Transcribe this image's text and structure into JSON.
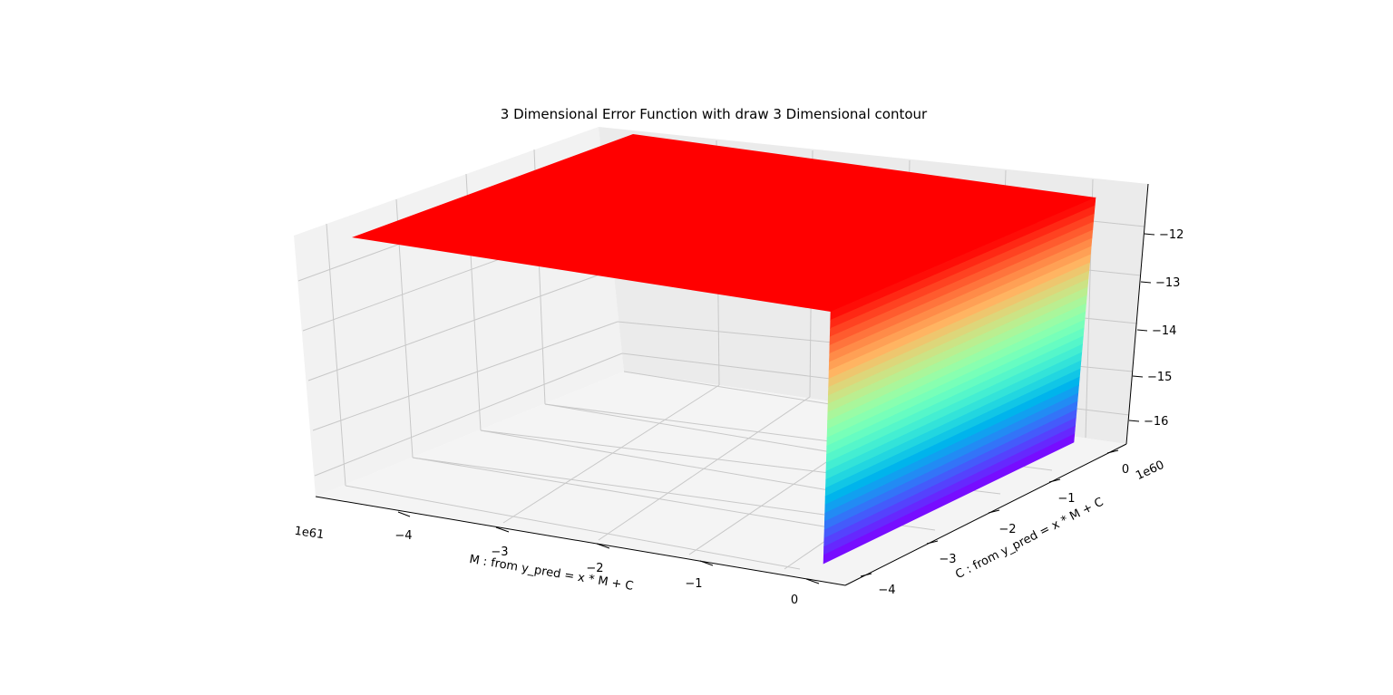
{
  "chart_data": {
    "type": "surface3d",
    "title": "3 Dimensional Error Function with draw 3 Dimensional contour",
    "xlabel": "M : from y_pred = x * M + C",
    "ylabel": "C : from y_pred = x * M + C",
    "zlabel": "",
    "x_ticks": [
      "−4",
      "−3",
      "−2",
      "−1",
      "0"
    ],
    "x_offset": "1e61",
    "y_ticks": [
      "0",
      "−1",
      "−2",
      "−3",
      "−4"
    ],
    "y_offset": "1e60",
    "z_ticks": [
      "−12",
      "−13",
      "−14",
      "−15",
      "−16"
    ],
    "colormap": "rainbow",
    "grid": true,
    "surface": {
      "description_values": {
        "plateau_z": -11.6,
        "cliff_bottom_z": -16.4,
        "contour_levels": 30
      }
    }
  }
}
